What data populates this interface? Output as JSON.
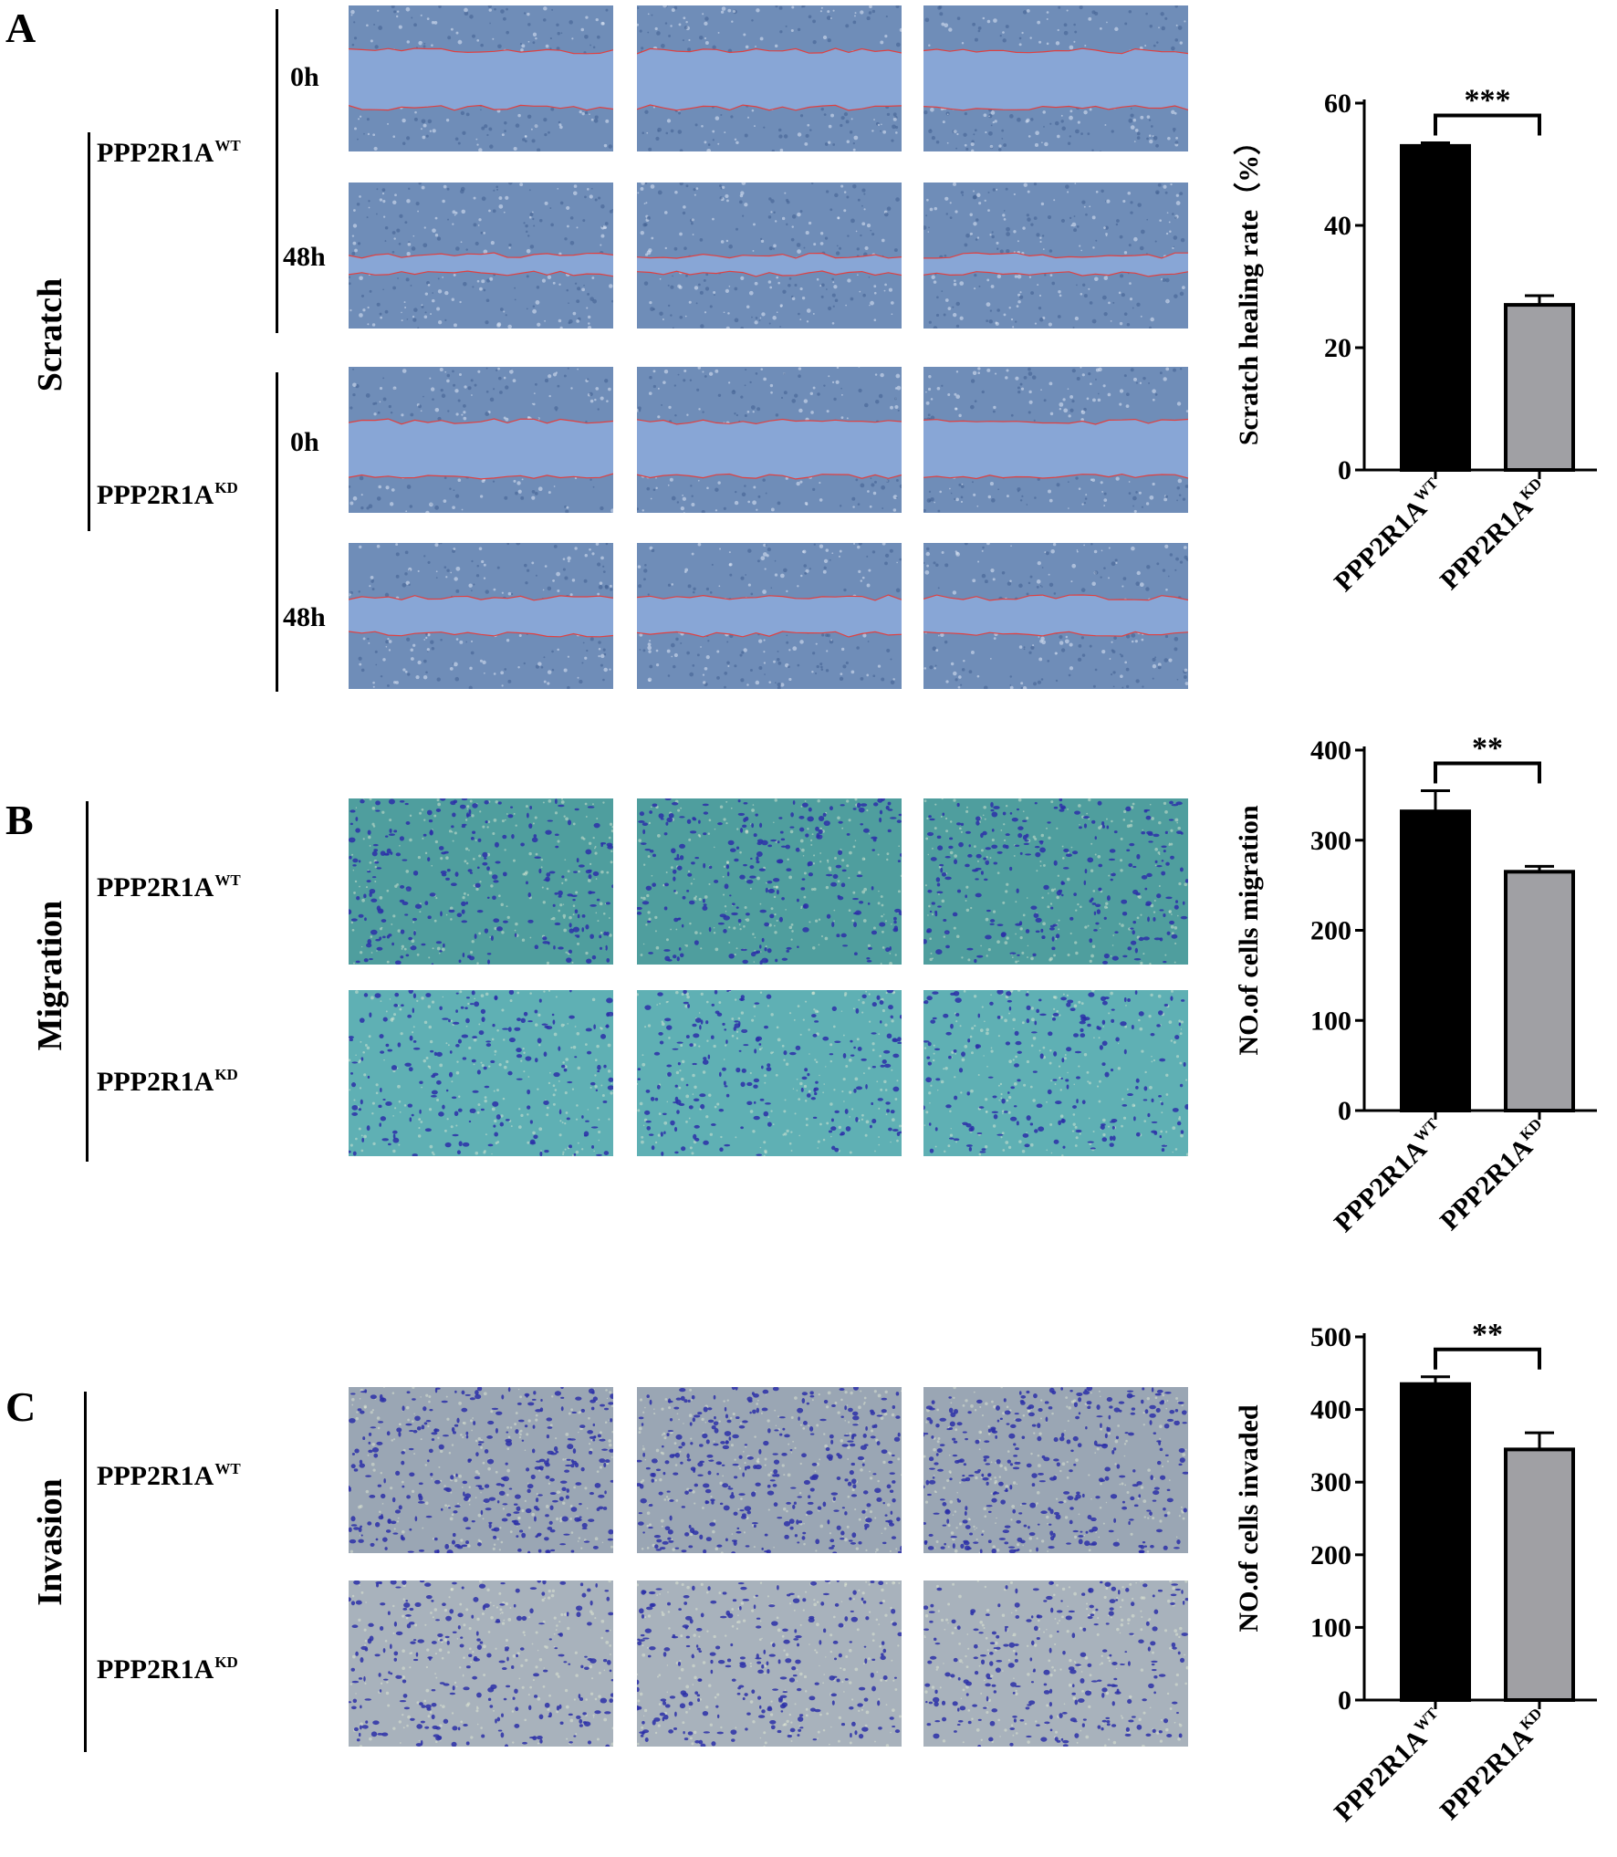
{
  "panels": {
    "A": {
      "letter": "A",
      "section": "Scratch",
      "groups": [
        {
          "main": "PPP2R1A",
          "sup": "WT"
        },
        {
          "main": "PPP2R1A",
          "sup": "KD"
        }
      ],
      "times": [
        "0h",
        "48h",
        "0h",
        "48h"
      ]
    },
    "B": {
      "letter": "B",
      "section": "Migration",
      "groups": [
        {
          "main": "PPP2R1A",
          "sup": "WT"
        },
        {
          "main": "PPP2R1A",
          "sup": "KD"
        }
      ]
    },
    "C": {
      "letter": "C",
      "section": "Invasion",
      "groups": [
        {
          "main": "PPP2R1A",
          "sup": "WT"
        },
        {
          "main": "PPP2R1A",
          "sup": "KD"
        }
      ]
    }
  },
  "chart_data": [
    {
      "type": "bar",
      "categories": [
        "PPP2R1A^WT",
        "PPP2R1A^KD"
      ],
      "category_labels": [
        {
          "main": "PPP2R1A",
          "sup": "WT"
        },
        {
          "main": "PPP2R1A",
          "sup": "KD"
        }
      ],
      "values": [
        53,
        27
      ],
      "errors": [
        0.5,
        1.5
      ],
      "colors": [
        "#000000",
        "#a0a0a4"
      ],
      "ylabel": "Scratch healing rate（%）",
      "ylim": [
        0,
        60
      ],
      "yticks": [
        0,
        20,
        40,
        60
      ],
      "significance": "***"
    },
    {
      "type": "bar",
      "categories": [
        "PPP2R1A^WT",
        "PPP2R1A^KD"
      ],
      "category_labels": [
        {
          "main": "PPP2R1A",
          "sup": "WT"
        },
        {
          "main": "PPP2R1A",
          "sup": "KD"
        }
      ],
      "values": [
        332,
        265
      ],
      "errors": [
        23,
        6
      ],
      "colors": [
        "#000000",
        "#a0a0a4"
      ],
      "ylabel": "NO.of cells migration",
      "ylim": [
        0,
        400
      ],
      "yticks": [
        0,
        100,
        200,
        300,
        400
      ],
      "significance": "**"
    },
    {
      "type": "bar",
      "categories": [
        "PPP2R1A^WT",
        "PPP2R1A^KD"
      ],
      "category_labels": [
        {
          "main": "PPP2R1A",
          "sup": "WT"
        },
        {
          "main": "PPP2R1A",
          "sup": "KD"
        }
      ],
      "values": [
        435,
        345
      ],
      "errors": [
        10,
        23
      ],
      "colors": [
        "#000000",
        "#a0a0a4"
      ],
      "ylabel": "NO.of cells invaded",
      "ylim": [
        0,
        500
      ],
      "yticks": [
        0,
        100,
        200,
        300,
        400,
        500
      ],
      "significance": "**"
    }
  ],
  "colors": {
    "scratch_cells": "#6f8db8",
    "scratch_gap": "#88a6d6",
    "wound_edge": "#e04040",
    "migration_bg": "#4f9e9e",
    "invasion_bg": "#9aa6b4",
    "stain": "#2c2fa8"
  }
}
